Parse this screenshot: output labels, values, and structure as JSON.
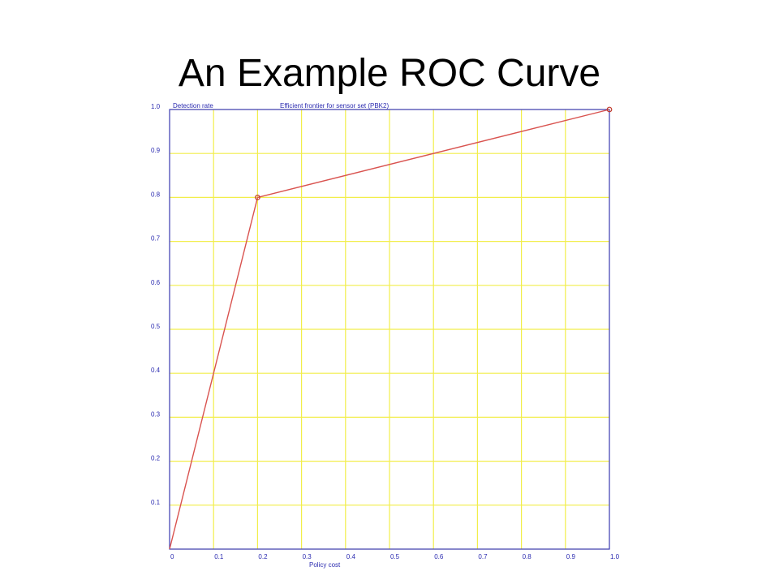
{
  "slide": {
    "title": "An Example ROC Curve"
  },
  "chart_data": {
    "type": "line",
    "title": "Efficient frontier for sensor set (PBK2)",
    "ylabel": "Detection rate",
    "xlabel": "Policy cost",
    "xlim": [
      0,
      1
    ],
    "ylim": [
      0,
      1
    ],
    "x_ticks": [
      "0",
      "0.1",
      "0.2",
      "0.3",
      "0.4",
      "0.5",
      "0.6",
      "0.7",
      "0.8",
      "0.9",
      "1.0"
    ],
    "y_ticks": [
      "0.1",
      "0.2",
      "0.3",
      "0.4",
      "0.5",
      "0.6",
      "0.7",
      "0.8",
      "0.9",
      "1.0"
    ],
    "grid": true,
    "series": [
      {
        "x": [
          0,
          0.2,
          1.0
        ],
        "y": [
          0,
          0.8,
          1.0
        ],
        "markers": [
          false,
          true,
          true
        ]
      }
    ],
    "colors": {
      "grid": "#f2ee4a",
      "frame": "#3b3bc8",
      "line": "#d9534f",
      "marker": "#c0392b",
      "text": "#2b2bb0"
    }
  }
}
